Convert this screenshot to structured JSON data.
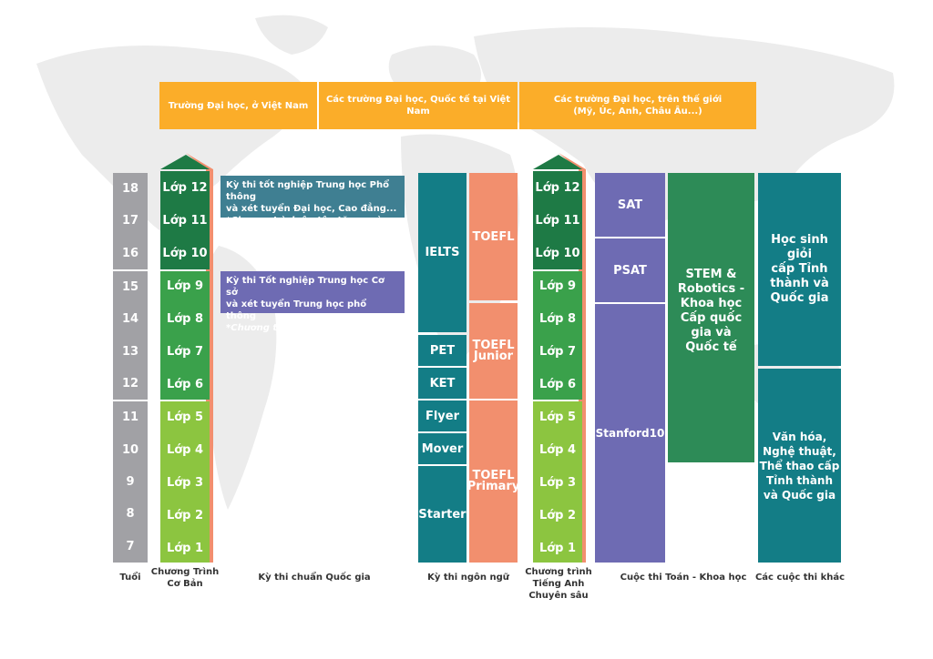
{
  "headers": [
    "Trường Đại học, ở Việt Nam",
    "Các trường Đại học, Quốc tế tại Việt Nam",
    "Các trường Đại học, trên thế giới",
    "(Mỹ, Úc, Anh, Châu Âu...)"
  ],
  "ages": [
    "18",
    "17",
    "16",
    "15",
    "14",
    "13",
    "12",
    "11",
    "10",
    "9",
    "8",
    "7"
  ],
  "grades": [
    "Lớp 12",
    "Lớp 11",
    "Lớp 10",
    "Lớp 9",
    "Lớp 8",
    "Lớp 7",
    "Lớp 6",
    "Lớp 5",
    "Lớp 4",
    "Lớp 3",
    "Lớp 2",
    "Lớp 1"
  ],
  "notes": {
    "high_school": [
      "Kỳ thi tốt nghiệp Trung học Phổ thông",
      "và xét tuyển Đại học, Cao đẳng...",
      "*Chương trình ôn tập tăng cường."
    ],
    "middle_school": [
      "Kỳ thi Tốt nghiệp Trung học Cơ sở",
      "và xét tuyển Trung học phổ thông",
      "*Chương trình ôn tập tăng cường"
    ]
  },
  "language_exams": {
    "left": [
      "IELTS",
      "PET",
      "KET",
      "Flyer",
      "Mover",
      "Starter"
    ],
    "toefl": [
      "TOEFL",
      "TOEFL",
      "Junior",
      "TOEFL",
      "Primary"
    ]
  },
  "math_science": {
    "tests": [
      "SAT",
      "PSAT",
      "Stanford10"
    ],
    "stem": [
      "STEM &",
      "Robotics -",
      "Khoa học",
      "Cấp quốc",
      "gia và",
      "Quốc tế"
    ]
  },
  "others": {
    "top": [
      "Học sinh giỏi",
      "cấp Tỉnh",
      "thành và",
      "Quốc gia"
    ],
    "bottom": [
      "Văn hóa,",
      "Nghệ thuật,",
      "Thể thao cấp",
      "Tỉnh thành",
      "và Quốc gia"
    ]
  },
  "labels": {
    "age": "Tuổi",
    "basic": [
      "Chương Trình",
      "Cơ Bản"
    ],
    "national": "Kỳ thi chuẩn Quốc gia",
    "language": "Kỳ thi ngôn ngữ",
    "advanced": [
      "Chương trình",
      "Tiếng Anh",
      "Chuyên sâu"
    ],
    "math": "Cuộc thi Toán - Khoa học",
    "other": "Các cuộc thi khác"
  },
  "colors": {
    "orange": "#fbad29",
    "gray": "#a1a1a5",
    "dark_green": "#1e7a45",
    "mid_green": "#3aa14b",
    "light_green": "#8cc540",
    "salmon": "#f28f6e",
    "teal": "#137d86",
    "purple": "#6e6bb3",
    "forest": "#2d8b57",
    "note_teal": "#3f7f92",
    "note_purple": "#6e6bb3"
  }
}
